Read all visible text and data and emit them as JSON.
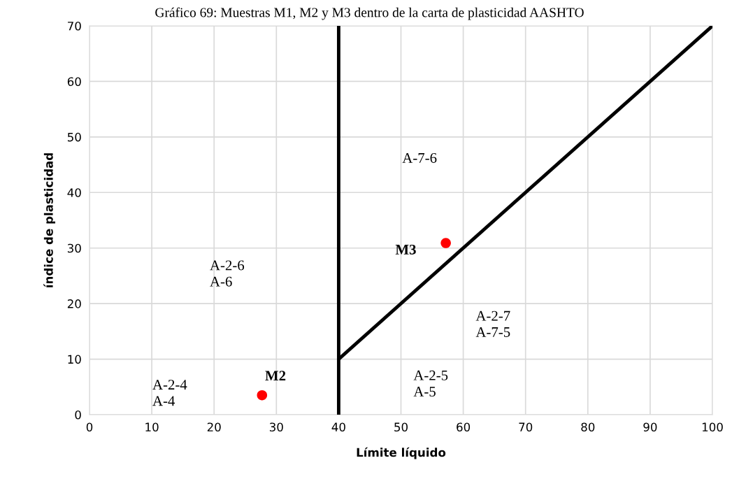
{
  "chart_data": {
    "type": "scatter",
    "title": "Gráfico 69: Muestras M1, M2 y M3 dentro de la carta de plasticidad AASHTO",
    "xlabel": "Límite líquido",
    "ylabel": "índice de plasticidad",
    "xlim": [
      0,
      100
    ],
    "xticks": [
      0,
      10,
      20,
      30,
      40,
      50,
      60,
      70,
      80,
      90,
      100
    ],
    "ylim": [
      0,
      70
    ],
    "yticks": [
      0,
      10,
      20,
      30,
      40,
      50,
      60,
      70
    ],
    "grid": true,
    "marker": "circle",
    "series": [
      {
        "type": "line",
        "color": "#000000",
        "x": [
          40,
          40
        ],
        "values": [
          0,
          70
        ],
        "marker": "none"
      },
      {
        "type": "line",
        "color": "#000000",
        "x": [
          40,
          100
        ],
        "values": [
          10,
          70
        ],
        "marker": "none"
      },
      {
        "name": "M2",
        "color": "#ff0000",
        "x": [
          27.7
        ],
        "values": [
          3.5
        ]
      },
      {
        "name": "M3",
        "color": "#ff0000",
        "x": [
          57.2
        ],
        "values": [
          30.9
        ]
      }
    ],
    "annotations": [
      "A-2-4\nA-4",
      "A-2-6\nA-6",
      "A-7-6",
      "A-2-7\nA-7-5",
      "A-2-5\nA-5"
    ]
  }
}
